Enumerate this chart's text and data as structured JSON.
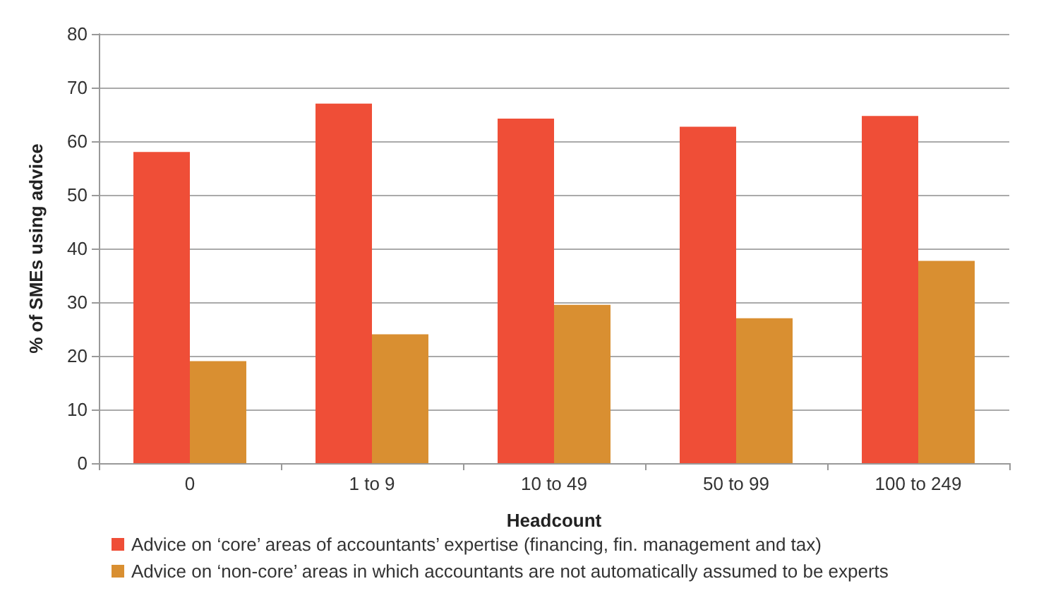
{
  "chart_data": {
    "type": "bar",
    "xlabel": "Headcount",
    "ylabel": "% of SMEs using advice",
    "categories": [
      "0",
      "1 to 9",
      "10 to 49",
      "50 to 99",
      "100 to 249"
    ],
    "series": [
      {
        "name": "Advice on ‘core’ areas of accountants’ expertise (financing, fin. management and tax)",
        "color": "#ef4e37",
        "values": [
          58,
          67,
          64.2,
          62.7,
          64.7
        ]
      },
      {
        "name": "Advice on ‘non-core’ areas in which accountants are not automatically assumed to be experts",
        "color": "#d98f31",
        "values": [
          19,
          24,
          29.5,
          27,
          37.7
        ]
      }
    ],
    "ylim": [
      0,
      80
    ],
    "yticks": [
      0,
      10,
      20,
      30,
      40,
      50,
      60,
      70,
      80
    ],
    "grid": "y",
    "legend": "bottom"
  }
}
